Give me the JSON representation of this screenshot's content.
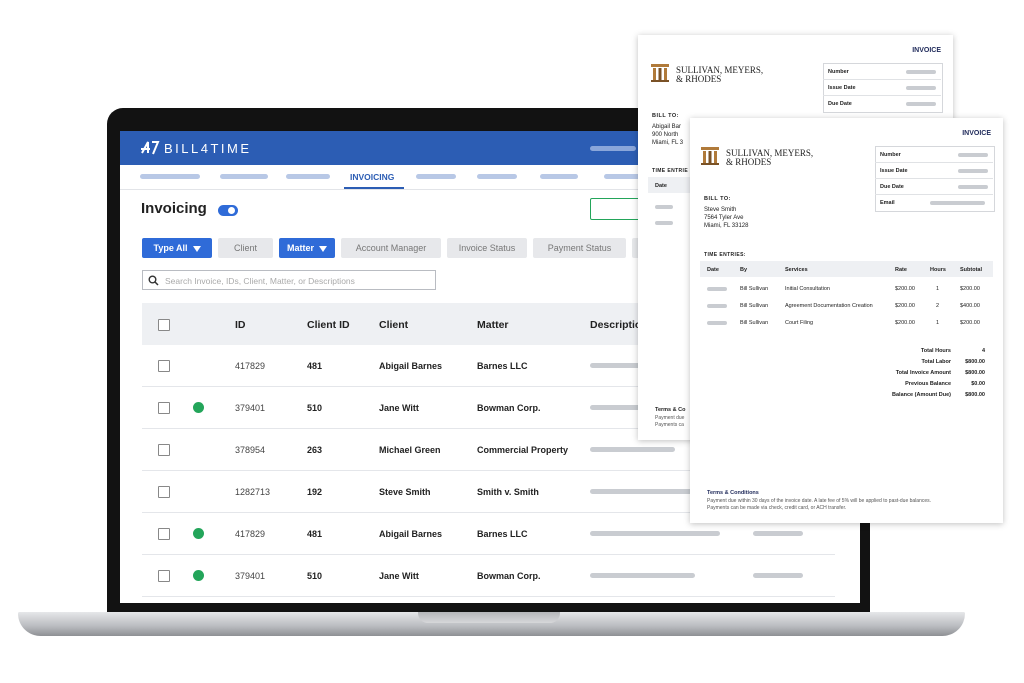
{
  "app": {
    "brand": "BILL4TIME",
    "nav_active": "INVOICING",
    "page_title": "Invoicing",
    "filters": [
      {
        "label": "Type All",
        "dropdown": true,
        "active": true
      },
      {
        "label": "Client",
        "dropdown": false,
        "active": false
      },
      {
        "label": "Matter",
        "dropdown": true,
        "active": true
      },
      {
        "label": "Account Manager",
        "dropdown": false,
        "active": false
      },
      {
        "label": "Invoice Status",
        "dropdown": false,
        "active": false
      },
      {
        "label": "Payment Status",
        "dropdown": false,
        "active": false
      }
    ],
    "search_placeholder": "Search Invoice, IDs, Client, Matter, or Descriptions",
    "table": {
      "headers": [
        "ID",
        "Client ID",
        "Client",
        "Matter",
        "Description"
      ],
      "rows": [
        {
          "status": false,
          "id": "417829",
          "client_id": "481",
          "client": "Abigail Barnes",
          "matter": "Barnes LLC"
        },
        {
          "status": true,
          "id": "379401",
          "client_id": "510",
          "client": "Jane Witt",
          "matter": "Bowman Corp."
        },
        {
          "status": false,
          "id": "378954",
          "client_id": "263",
          "client": "Michael Green",
          "matter": "Commercial Property"
        },
        {
          "status": false,
          "id": "1282713",
          "client_id": "192",
          "client": "Steve Smith",
          "matter": "Smith v. Smith"
        },
        {
          "status": true,
          "id": "417829",
          "client_id": "481",
          "client": "Abigail Barnes",
          "matter": "Barnes LLC"
        },
        {
          "status": true,
          "id": "379401",
          "client_id": "510",
          "client": "Jane Witt",
          "matter": "Bowman Corp."
        }
      ]
    }
  },
  "invoice_back": {
    "heading": "INVOICE",
    "firm": [
      "SULLIVAN, MEYERS,",
      "& RHODES"
    ],
    "fields": [
      "Number",
      "Issue Date",
      "Due Date"
    ],
    "bill_to_label": "BILL TO:",
    "bill_to": [
      "Abigail Bar",
      "900 North",
      "Miami, FL 3"
    ],
    "entries_label": "TIME ENTRIE",
    "date_header": "Date",
    "terms_title": "Terms & Co",
    "terms": [
      "Payment due",
      "Payments ca"
    ]
  },
  "invoice_front": {
    "heading": "INVOICE",
    "firm": [
      "SULLIVAN, MEYERS,",
      "& RHODES"
    ],
    "fields": [
      "Number",
      "Issue Date",
      "Due Date",
      "Email"
    ],
    "bill_to_label": "BILL TO:",
    "bill_to": [
      "Steve Smith",
      "7564 Tyler Ave",
      "Miami, FL 33128"
    ],
    "entries_label": "TIME ENTRIES:",
    "headers": [
      "Date",
      "By",
      "Services",
      "Rate",
      "Hours",
      "Subtotal"
    ],
    "entries": [
      {
        "by": "Bill Sullivan",
        "service": "Initial Consultation",
        "rate": "$200.00",
        "hours": "1",
        "subtotal": "$200.00"
      },
      {
        "by": "Bill Sullivan",
        "service": "Agreement Documentation Creation",
        "rate": "$200.00",
        "hours": "2",
        "subtotal": "$400.00"
      },
      {
        "by": "Bill Sullivan",
        "service": "Court Filing",
        "rate": "$200.00",
        "hours": "1",
        "subtotal": "$200.00"
      }
    ],
    "totals": [
      {
        "label": "Total Hours",
        "value": "4"
      },
      {
        "label": "Total Labor",
        "value": "$800.00"
      },
      {
        "label": "Total Invoice Amount",
        "value": "$800.00"
      },
      {
        "label": "Previous Balance",
        "value": "$0.00"
      },
      {
        "label": "Balance (Amount Due)",
        "value": "$800.00"
      }
    ],
    "terms_title": "Terms & Conditions",
    "terms": [
      "Payment due within 30 days of the invoice date. A late fee of 5% will be applied to past-due balances.",
      "Payments can be made via check, credit card, or ACH transfer."
    ]
  }
}
